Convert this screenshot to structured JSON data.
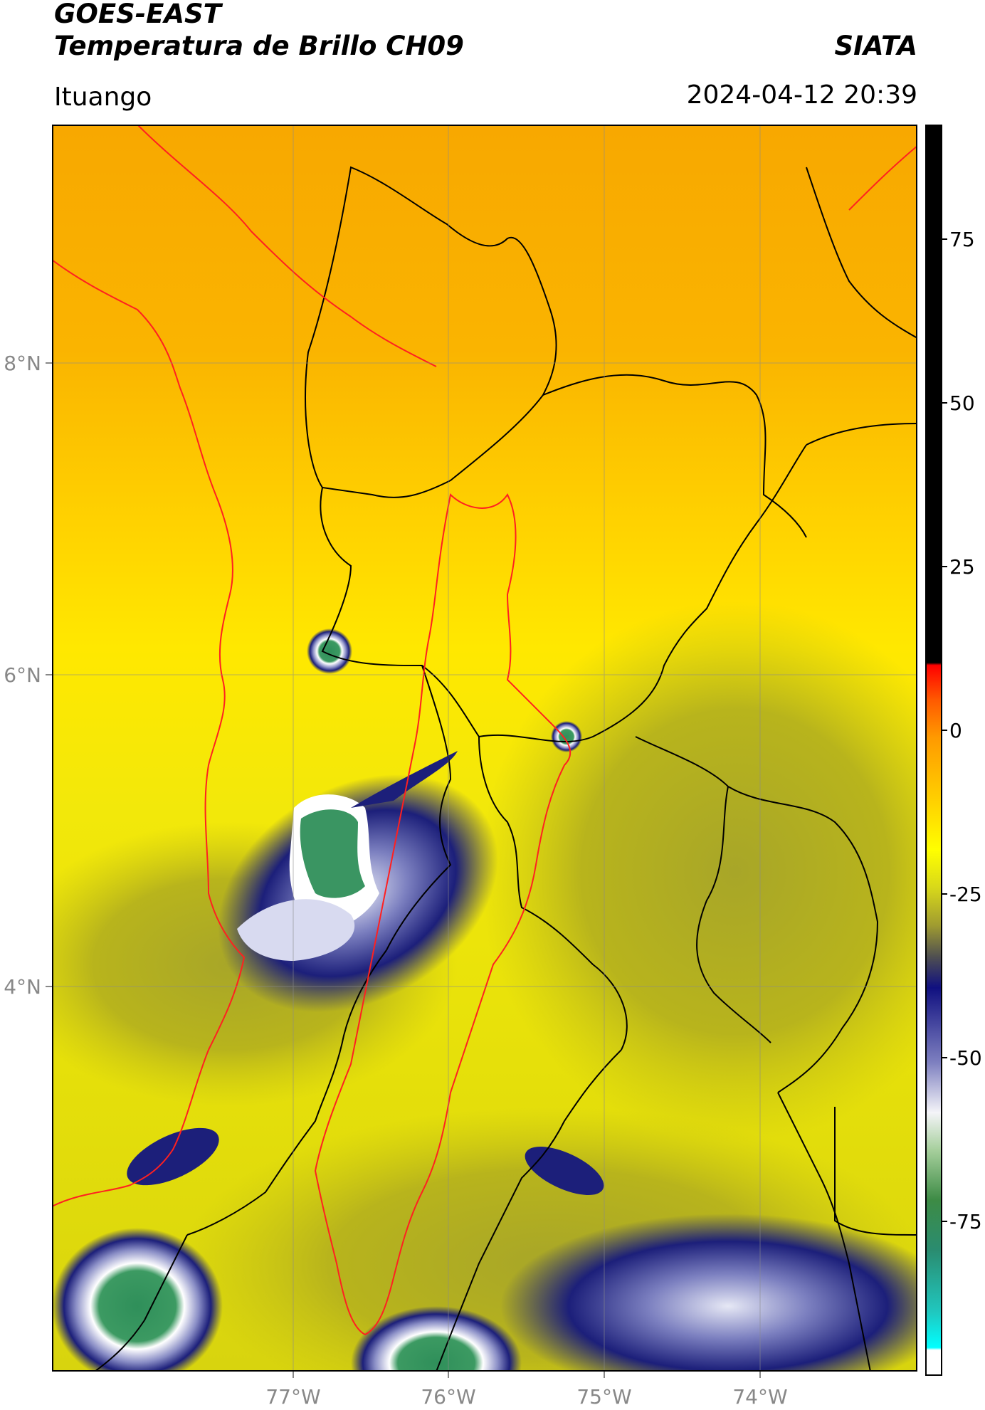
{
  "header": {
    "satellite": "GOES-EAST",
    "product": "Temperatura de Brillo CH09",
    "org": "SIATA",
    "location": "Ituango",
    "datetime": "2024-04-12 20:39"
  },
  "map": {
    "lat_labels": [
      "8°N",
      "6°N",
      "4°N"
    ],
    "lon_labels": [
      "77°W",
      "76°W",
      "75°W",
      "74°W"
    ]
  },
  "colorbar": {
    "tick_labels": [
      "75",
      "50",
      "25",
      "0",
      "-25",
      "-50",
      "-75"
    ]
  },
  "colors": {
    "frame": "#000000",
    "border_black": "#000000",
    "border_red": "#ff2020",
    "warm_orange": "#f7a600",
    "mid_yellow": "#ffee00",
    "olive": "#b4b01e",
    "cold_navy": "#1c1f7a",
    "very_cold_green": "#2f8f5a"
  }
}
